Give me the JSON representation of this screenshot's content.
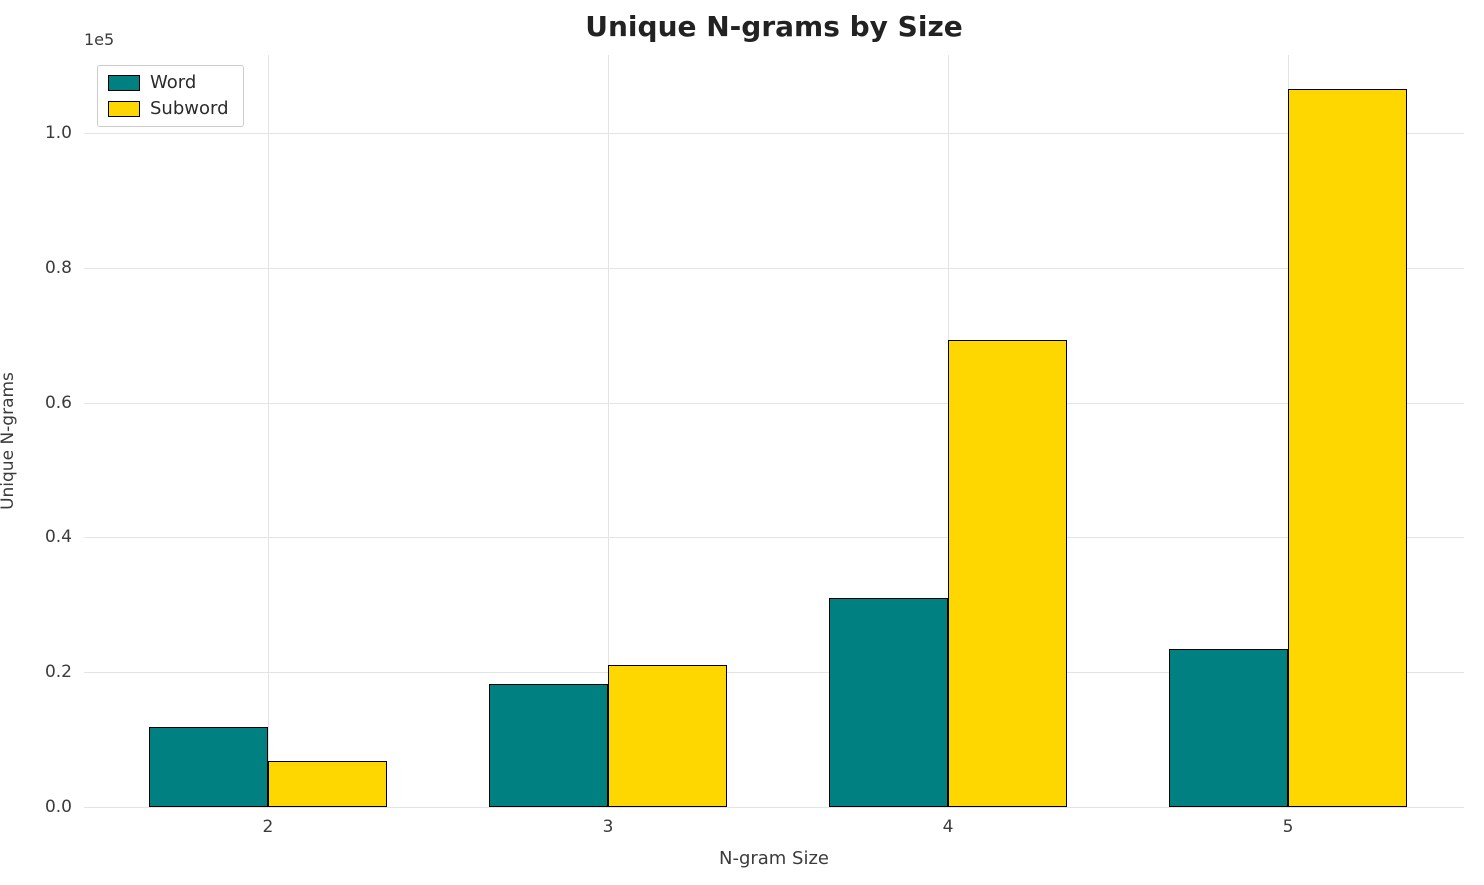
{
  "chart_data": {
    "type": "bar",
    "title": "Unique N-grams by Size",
    "xlabel": "N-gram Size",
    "ylabel": "Unique N-grams",
    "offset_text": "1e5",
    "categories": [
      "2",
      "3",
      "4",
      "5"
    ],
    "series": [
      {
        "name": "Word",
        "color": "#008080",
        "values": [
          11800,
          18200,
          31000,
          23500
        ]
      },
      {
        "name": "Subword",
        "color": "#FFD700",
        "values": [
          6900,
          21000,
          69300,
          106500
        ]
      }
    ],
    "edge_color": "#000000",
    "ylim": [
      0,
      111600
    ],
    "yticks": [
      {
        "value": 0,
        "label": "0.0"
      },
      {
        "value": 20000,
        "label": "0.2"
      },
      {
        "value": 40000,
        "label": "0.4"
      },
      {
        "value": 60000,
        "label": "0.6"
      },
      {
        "value": 80000,
        "label": "0.8"
      },
      {
        "value": 100000,
        "label": "1.0"
      }
    ],
    "grid": true,
    "legend_position": "upper left"
  }
}
